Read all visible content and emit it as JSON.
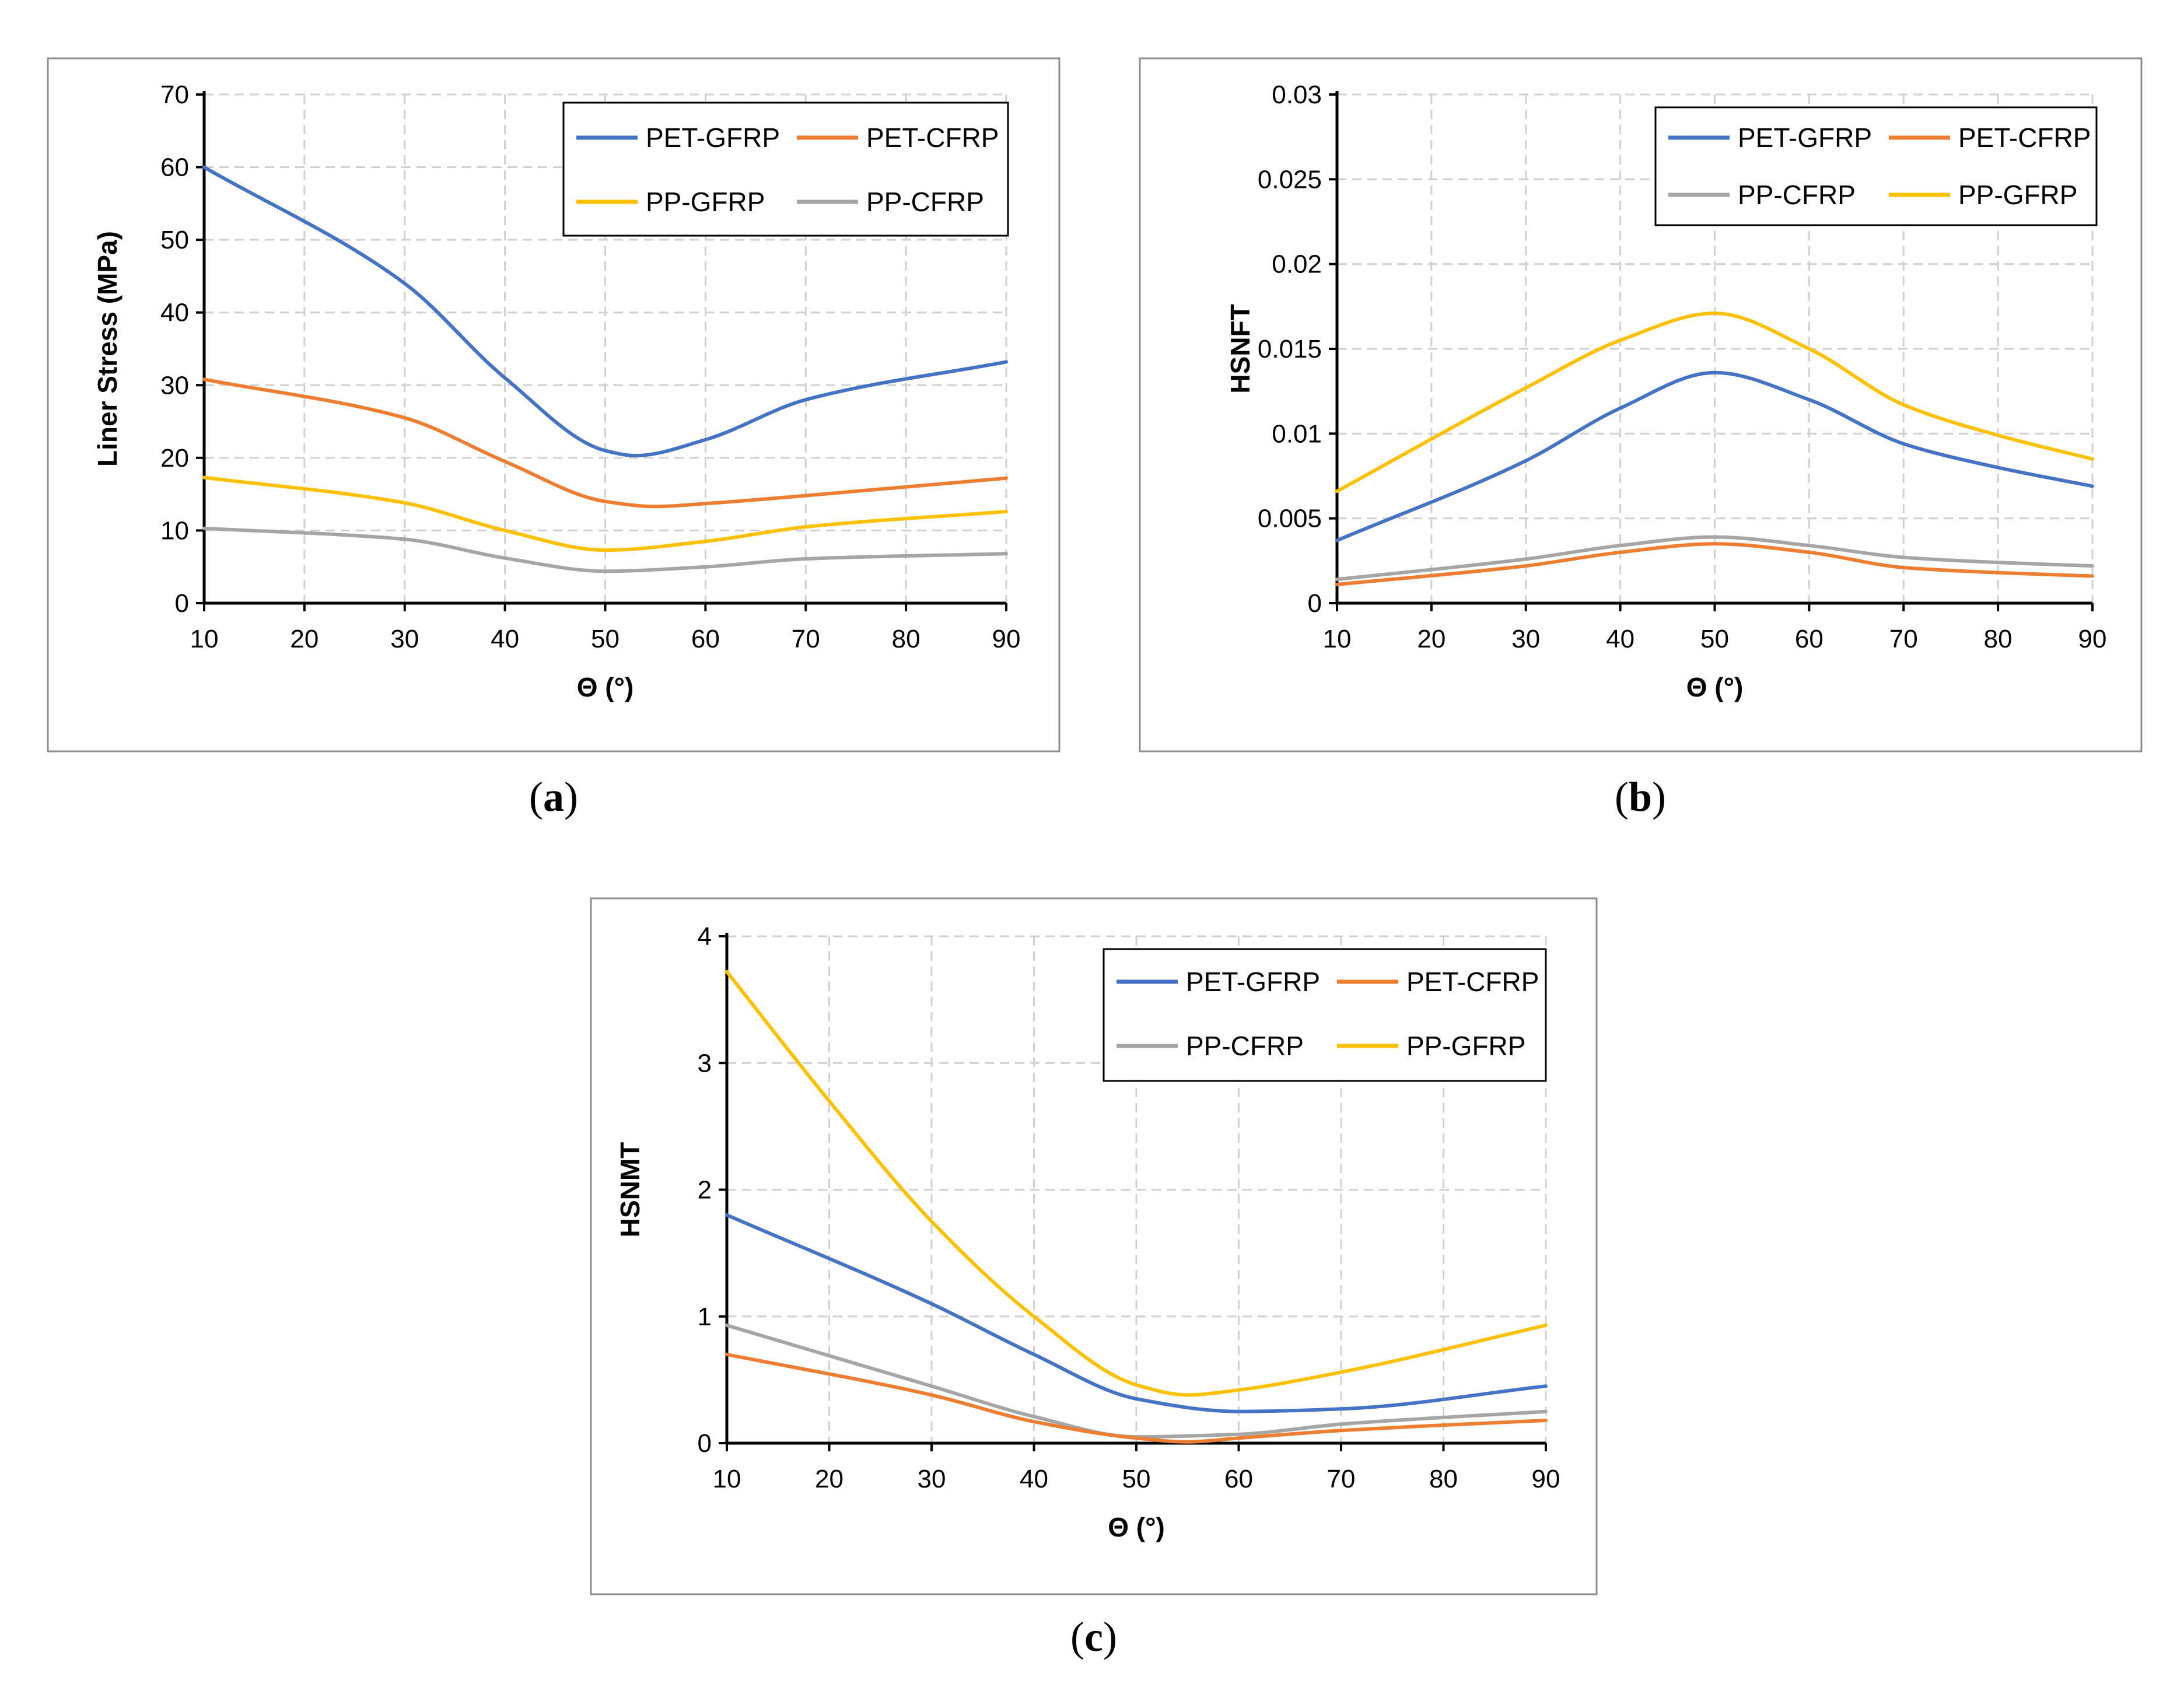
{
  "colors": {
    "PET-GFRP": "#4472C4",
    "PET-CFRP": "#ED7D31",
    "PP-GFRP": "#FFC000",
    "PP-CFRP": "#A5A5A5",
    "grid": "#D0D0D0",
    "frame": "#8C8C8C"
  },
  "chart_data": [
    {
      "id": "a",
      "type": "line",
      "caption": "(a)",
      "caption_letter": "a",
      "xlabel": "Θ (°)",
      "ylabel": "Liner Stress (MPa)",
      "xlim": [
        10,
        90
      ],
      "ylim": [
        0,
        70
      ],
      "xticks": [
        10,
        20,
        30,
        40,
        50,
        60,
        70,
        80,
        90
      ],
      "yticks": [
        "0",
        "10",
        "20",
        "30",
        "40",
        "50",
        "60",
        "70"
      ],
      "legend_order": [
        "PET-GFRP",
        "PET-CFRP",
        "PP-GFRP",
        "PP-CFRP"
      ],
      "grid": true,
      "legend_position": "top-right",
      "series": [
        {
          "name": "PET-GFRP",
          "x": [
            10,
            30,
            40,
            50,
            53,
            60,
            70,
            90
          ],
          "y": [
            60,
            44,
            31,
            21,
            20.3,
            22.5,
            28,
            33.2
          ]
        },
        {
          "name": "PET-CFRP",
          "x": [
            10,
            30,
            40,
            50,
            55,
            60,
            70,
            90
          ],
          "y": [
            30.8,
            25.5,
            19.5,
            14,
            13.3,
            13.7,
            14.8,
            17.2
          ]
        },
        {
          "name": "PP-GFRP",
          "x": [
            10,
            30,
            40,
            50,
            60,
            70,
            90
          ],
          "y": [
            17.3,
            13.8,
            10,
            7.3,
            8.5,
            10.5,
            12.6
          ]
        },
        {
          "name": "PP-CFRP",
          "x": [
            10,
            30,
            40,
            50,
            60,
            70,
            90
          ],
          "y": [
            10.3,
            8.8,
            6.2,
            4.4,
            5,
            6.1,
            6.8
          ]
        }
      ]
    },
    {
      "id": "b",
      "type": "line",
      "caption": "(b)",
      "caption_letter": "b",
      "xlabel": "Θ (°)",
      "ylabel": "HSNFT",
      "xlim": [
        10,
        90
      ],
      "ylim": [
        0,
        0.03
      ],
      "xticks": [
        10,
        20,
        30,
        40,
        50,
        60,
        70,
        80,
        90
      ],
      "yticks": [
        "0",
        "0.005",
        "0.01",
        "0.015",
        "0.02",
        "0.025",
        "0.03"
      ],
      "legend_order": [
        "PET-GFRP",
        "PET-CFRP",
        "PP-CFRP",
        "PP-GFRP"
      ],
      "grid": true,
      "legend_position": "top-right",
      "series": [
        {
          "name": "PET-GFRP",
          "x": [
            10,
            30,
            40,
            50,
            60,
            70,
            80,
            90
          ],
          "y": [
            0.0037,
            0.0084,
            0.0115,
            0.0136,
            0.012,
            0.0094,
            0.008,
            0.0069
          ]
        },
        {
          "name": "PET-CFRP",
          "x": [
            10,
            30,
            40,
            50,
            60,
            70,
            80,
            90
          ],
          "y": [
            0.0011,
            0.0022,
            0.003,
            0.0035,
            0.003,
            0.0021,
            0.0018,
            0.0016
          ]
        },
        {
          "name": "PP-CFRP",
          "x": [
            10,
            30,
            40,
            50,
            60,
            70,
            80,
            90
          ],
          "y": [
            0.0014,
            0.0026,
            0.0034,
            0.0039,
            0.0034,
            0.0027,
            0.0024,
            0.0022
          ]
        },
        {
          "name": "PP-GFRP",
          "x": [
            10,
            30,
            40,
            50,
            60,
            70,
            80,
            90
          ],
          "y": [
            0.0066,
            0.0127,
            0.0155,
            0.0171,
            0.015,
            0.0117,
            0.0099,
            0.0085
          ]
        }
      ]
    },
    {
      "id": "c",
      "type": "line",
      "caption": "(c)",
      "caption_letter": "c",
      "xlabel": "Θ (°)",
      "ylabel": "HSNMT",
      "xlim": [
        10,
        90
      ],
      "ylim": [
        0,
        4
      ],
      "xticks": [
        10,
        20,
        30,
        40,
        50,
        60,
        70,
        80,
        90
      ],
      "yticks": [
        "0",
        "1",
        "2",
        "3",
        "4"
      ],
      "legend_order": [
        "PET-GFRP",
        "PET-CFRP",
        "PP-CFRP",
        "PP-GFRP"
      ],
      "grid": true,
      "legend_position": "top-right",
      "series": [
        {
          "name": "PET-GFRP",
          "x": [
            10,
            30,
            40,
            50,
            60,
            70,
            90
          ],
          "y": [
            1.8,
            1.1,
            0.7,
            0.35,
            0.25,
            0.27,
            0.45
          ]
        },
        {
          "name": "PET-CFRP",
          "x": [
            10,
            30,
            40,
            50,
            55,
            60,
            70,
            90
          ],
          "y": [
            0.7,
            0.38,
            0.17,
            0.04,
            0.01,
            0.04,
            0.1,
            0.18
          ]
        },
        {
          "name": "PP-CFRP",
          "x": [
            10,
            30,
            40,
            50,
            60,
            70,
            90
          ],
          "y": [
            0.93,
            0.45,
            0.21,
            0.05,
            0.07,
            0.15,
            0.25
          ]
        },
        {
          "name": "PP-GFRP",
          "x": [
            10,
            20,
            30,
            40,
            50,
            55,
            60,
            70,
            90
          ],
          "y": [
            3.72,
            2.7,
            1.75,
            1.0,
            0.46,
            0.38,
            0.42,
            0.56,
            0.93
          ]
        }
      ]
    }
  ]
}
